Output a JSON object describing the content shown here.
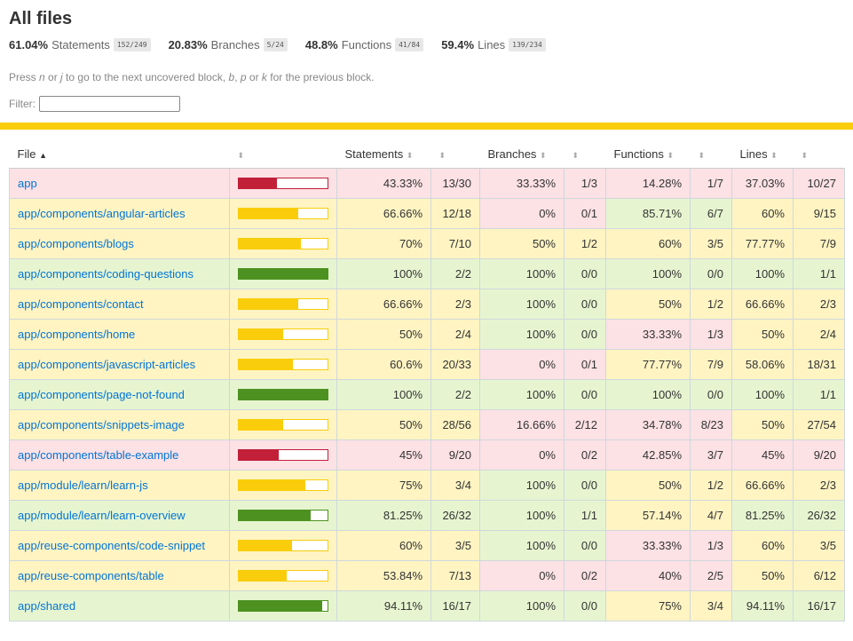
{
  "header": {
    "title": "All files",
    "summary": [
      {
        "pct": "61.04%",
        "label": "Statements",
        "frac": "152/249"
      },
      {
        "pct": "20.83%",
        "label": "Branches",
        "frac": "5/24"
      },
      {
        "pct": "48.8%",
        "label": "Functions",
        "frac": "41/84"
      },
      {
        "pct": "59.4%",
        "label": "Lines",
        "frac": "139/234"
      }
    ],
    "help": {
      "pre": "Press ",
      "k1": "n",
      "or1": " or ",
      "k2": "j",
      "mid": " to go to the next uncovered block, ",
      "k3": "b",
      "c1": ", ",
      "k4": "p",
      "or2": " or ",
      "k5": "k",
      "post": " for the previous block."
    },
    "filter_label": "Filter:",
    "filter_value": ""
  },
  "colors": {
    "low": "#c21f39",
    "medium": "#f9cd0b",
    "high": "#4d9221"
  },
  "table": {
    "headers": {
      "file": "File",
      "sort_asc_icon": "▲",
      "sorter_icon": "⬍",
      "statements": "Statements",
      "branches": "Branches",
      "functions": "Functions",
      "lines": "Lines"
    },
    "rows": [
      {
        "file": "app",
        "level": "low",
        "bar": 0.43,
        "stmt": "43.33%",
        "stmt_f": "13/30",
        "stmt_l": "low",
        "br": "33.33%",
        "br_f": "1/3",
        "br_l": "low",
        "fn": "14.28%",
        "fn_f": "1/7",
        "fn_l": "low",
        "ln": "37.03%",
        "ln_f": "10/27",
        "ln_l": "low"
      },
      {
        "file": "app/components/angular-articles",
        "level": "medium",
        "bar": 0.6666,
        "stmt": "66.66%",
        "stmt_f": "12/18",
        "stmt_l": "medium",
        "br": "0%",
        "br_f": "0/1",
        "br_l": "low",
        "fn": "85.71%",
        "fn_f": "6/7",
        "fn_l": "high",
        "ln": "60%",
        "ln_f": "9/15",
        "ln_l": "medium"
      },
      {
        "file": "app/components/blogs",
        "level": "medium",
        "bar": 0.7,
        "stmt": "70%",
        "stmt_f": "7/10",
        "stmt_l": "medium",
        "br": "50%",
        "br_f": "1/2",
        "br_l": "medium",
        "fn": "60%",
        "fn_f": "3/5",
        "fn_l": "medium",
        "ln": "77.77%",
        "ln_f": "7/9",
        "ln_l": "medium"
      },
      {
        "file": "app/components/coding-questions",
        "level": "high",
        "bar": 1.0,
        "stmt": "100%",
        "stmt_f": "2/2",
        "stmt_l": "high",
        "br": "100%",
        "br_f": "0/0",
        "br_l": "high",
        "fn": "100%",
        "fn_f": "0/0",
        "fn_l": "high",
        "ln": "100%",
        "ln_f": "1/1",
        "ln_l": "high"
      },
      {
        "file": "app/components/contact",
        "level": "medium",
        "bar": 0.6666,
        "stmt": "66.66%",
        "stmt_f": "2/3",
        "stmt_l": "medium",
        "br": "100%",
        "br_f": "0/0",
        "br_l": "high",
        "fn": "50%",
        "fn_f": "1/2",
        "fn_l": "medium",
        "ln": "66.66%",
        "ln_f": "2/3",
        "ln_l": "medium"
      },
      {
        "file": "app/components/home",
        "level": "medium",
        "bar": 0.5,
        "stmt": "50%",
        "stmt_f": "2/4",
        "stmt_l": "medium",
        "br": "100%",
        "br_f": "0/0",
        "br_l": "high",
        "fn": "33.33%",
        "fn_f": "1/3",
        "fn_l": "low",
        "ln": "50%",
        "ln_f": "2/4",
        "ln_l": "medium"
      },
      {
        "file": "app/components/javascript-articles",
        "level": "medium",
        "bar": 0.606,
        "stmt": "60.6%",
        "stmt_f": "20/33",
        "stmt_l": "medium",
        "br": "0%",
        "br_f": "0/1",
        "br_l": "low",
        "fn": "77.77%",
        "fn_f": "7/9",
        "fn_l": "medium",
        "ln": "58.06%",
        "ln_f": "18/31",
        "ln_l": "medium"
      },
      {
        "file": "app/components/page-not-found",
        "level": "high",
        "bar": 1.0,
        "stmt": "100%",
        "stmt_f": "2/2",
        "stmt_l": "high",
        "br": "100%",
        "br_f": "0/0",
        "br_l": "high",
        "fn": "100%",
        "fn_f": "0/0",
        "fn_l": "high",
        "ln": "100%",
        "ln_f": "1/1",
        "ln_l": "high"
      },
      {
        "file": "app/components/snippets-image",
        "level": "medium",
        "bar": 0.5,
        "stmt": "50%",
        "stmt_f": "28/56",
        "stmt_l": "medium",
        "br": "16.66%",
        "br_f": "2/12",
        "br_l": "low",
        "fn": "34.78%",
        "fn_f": "8/23",
        "fn_l": "low",
        "ln": "50%",
        "ln_f": "27/54",
        "ln_l": "medium"
      },
      {
        "file": "app/components/table-example",
        "level": "low",
        "bar": 0.45,
        "stmt": "45%",
        "stmt_f": "9/20",
        "stmt_l": "low",
        "br": "0%",
        "br_f": "0/2",
        "br_l": "low",
        "fn": "42.85%",
        "fn_f": "3/7",
        "fn_l": "low",
        "ln": "45%",
        "ln_f": "9/20",
        "ln_l": "low"
      },
      {
        "file": "app/module/learn/learn-js",
        "level": "medium",
        "bar": 0.75,
        "stmt": "75%",
        "stmt_f": "3/4",
        "stmt_l": "medium",
        "br": "100%",
        "br_f": "0/0",
        "br_l": "high",
        "fn": "50%",
        "fn_f": "1/2",
        "fn_l": "medium",
        "ln": "66.66%",
        "ln_f": "2/3",
        "ln_l": "medium"
      },
      {
        "file": "app/module/learn/learn-overview",
        "level": "high",
        "bar": 0.8125,
        "stmt": "81.25%",
        "stmt_f": "26/32",
        "stmt_l": "high",
        "br": "100%",
        "br_f": "1/1",
        "br_l": "high",
        "fn": "57.14%",
        "fn_f": "4/7",
        "fn_l": "medium",
        "ln": "81.25%",
        "ln_f": "26/32",
        "ln_l": "high"
      },
      {
        "file": "app/reuse-components/code-snippet",
        "level": "medium",
        "bar": 0.6,
        "stmt": "60%",
        "stmt_f": "3/5",
        "stmt_l": "medium",
        "br": "100%",
        "br_f": "0/0",
        "br_l": "high",
        "fn": "33.33%",
        "fn_f": "1/3",
        "fn_l": "low",
        "ln": "60%",
        "ln_f": "3/5",
        "ln_l": "medium"
      },
      {
        "file": "app/reuse-components/table",
        "level": "medium",
        "bar": 0.5384,
        "stmt": "53.84%",
        "stmt_f": "7/13",
        "stmt_l": "medium",
        "br": "0%",
        "br_f": "0/2",
        "br_l": "low",
        "fn": "40%",
        "fn_f": "2/5",
        "fn_l": "low",
        "ln": "50%",
        "ln_f": "6/12",
        "ln_l": "medium"
      },
      {
        "file": "app/shared",
        "level": "high",
        "bar": 0.9411,
        "stmt": "94.11%",
        "stmt_f": "16/17",
        "stmt_l": "high",
        "br": "100%",
        "br_f": "0/0",
        "br_l": "high",
        "fn": "75%",
        "fn_f": "3/4",
        "fn_l": "medium",
        "ln": "94.11%",
        "ln_f": "16/17",
        "ln_l": "high"
      }
    ]
  }
}
